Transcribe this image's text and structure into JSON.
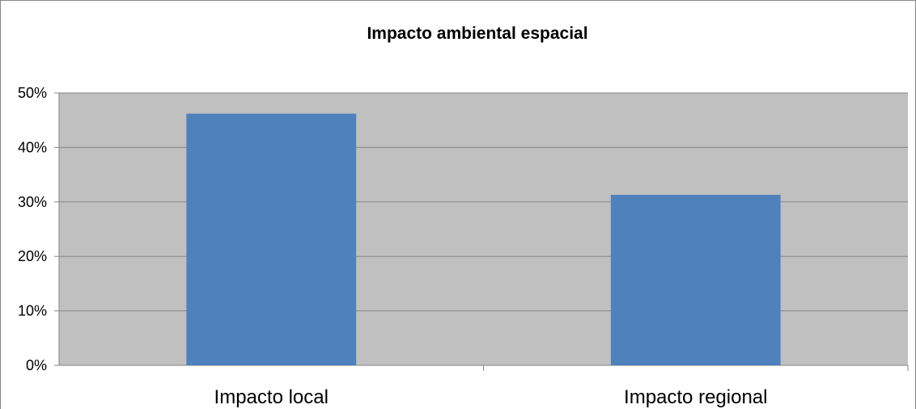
{
  "chart_data": {
    "type": "bar",
    "title": "Impacto ambiental espacial",
    "categories": [
      "Impacto local",
      "Impacto regional"
    ],
    "series": [
      {
        "values": [
          46.2,
          31.3
        ]
      }
    ],
    "yticks": [
      "0%",
      "10%",
      "20%",
      "30%",
      "40%",
      "50%"
    ],
    "ylim": [
      0,
      50
    ],
    "xlabel": "",
    "ylabel": "",
    "grid": true,
    "colors": {
      "bar": "#4F81BD",
      "plot_background": "#C0C0C0",
      "gridline": "#868686"
    }
  }
}
